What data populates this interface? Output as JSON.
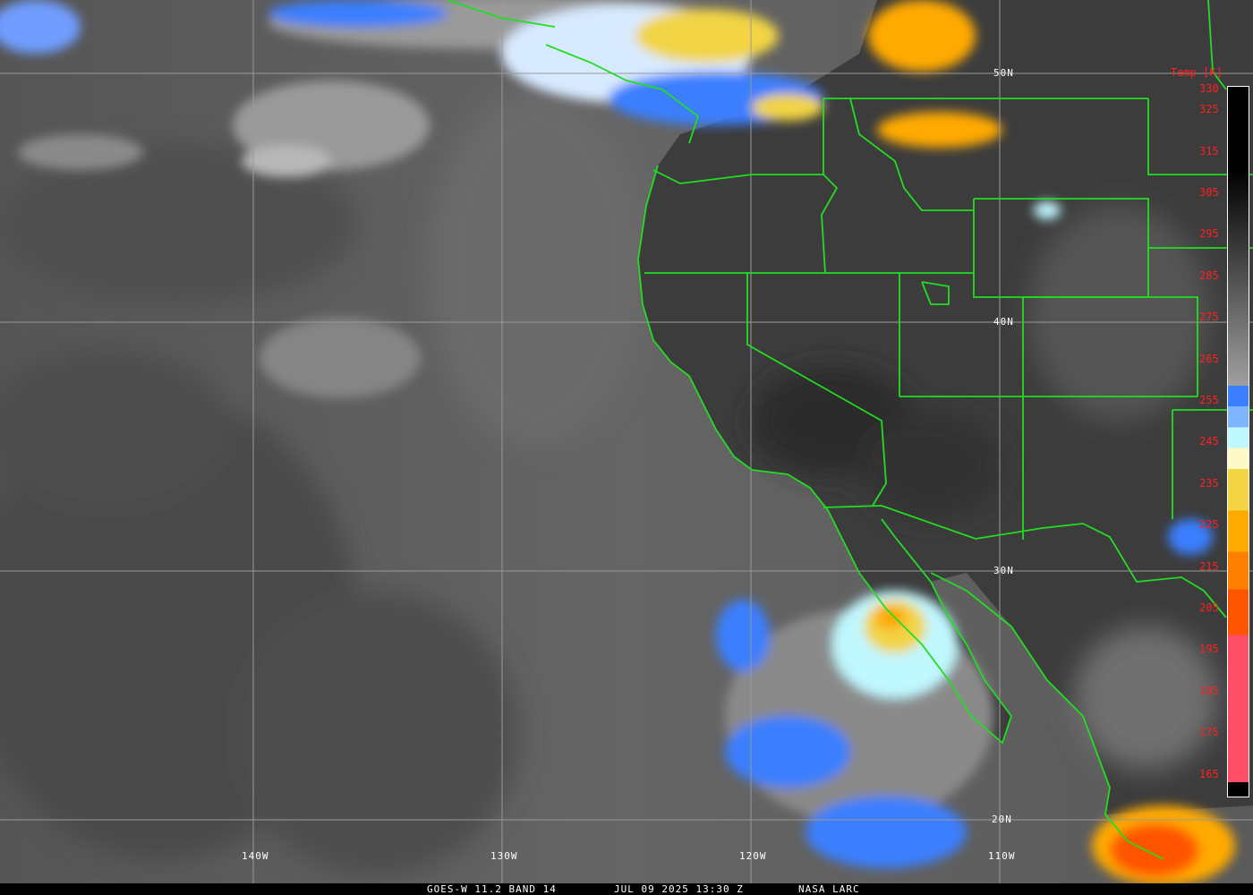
{
  "image": {
    "type": "GOES-West infrared satellite image",
    "caption": {
      "satellite_band": "GOES-W 11.2 BAND 14",
      "datetime": "JUL 09 2025 13:30 Z",
      "source": "NASA LARC"
    },
    "latitude_labels": [
      "50N",
      "40N",
      "30N",
      "20N"
    ],
    "longitude_labels": [
      "140W",
      "130W",
      "120W",
      "110W"
    ],
    "border_color": "#22dd22",
    "gridline_color": "#9a9a9a"
  },
  "colorbar": {
    "title": "Temp [K]",
    "ticks": [
      "330",
      "325",
      "315",
      "305",
      "295",
      "285",
      "275",
      "265",
      "255",
      "245",
      "235",
      "225",
      "215",
      "205",
      "195",
      "185",
      "175",
      "165"
    ],
    "tick_color": "#ff2020",
    "colors": {
      "black": "#000000",
      "gray": "#a0a0a0",
      "blue": "#3b7fff",
      "light_blue": "#7fb4ff",
      "cyan": "#bff8ff",
      "pale_yellow": "#fdf9c8",
      "yellow": "#f2d444",
      "orange": "#ffaa00",
      "dark_orange": "#ff8000",
      "red_orange": "#ff5500",
      "pink": "#ff4e68"
    }
  }
}
